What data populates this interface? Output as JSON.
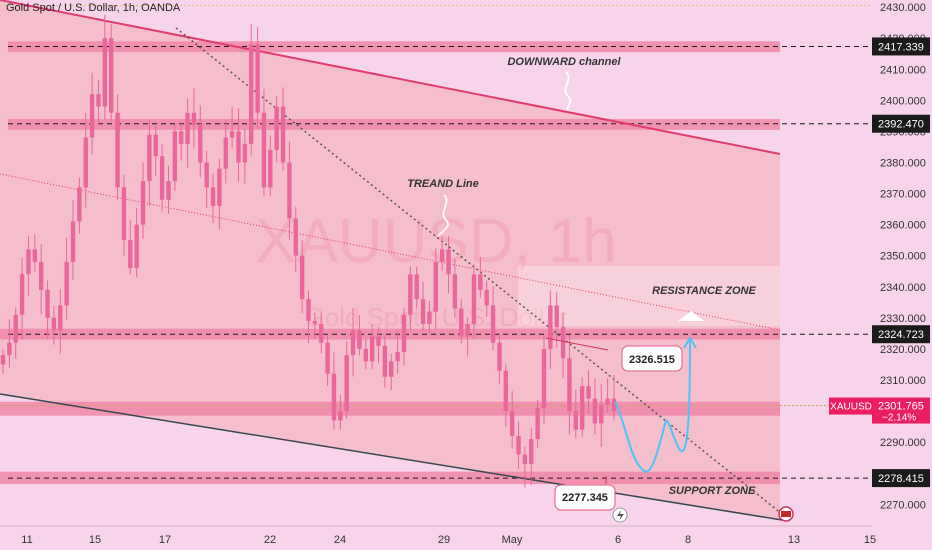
{
  "header": {
    "title": "Gold Spot / U.S. Dollar, 1h, OANDA"
  },
  "watermark": {
    "main": "XAUUSD, 1h",
    "sub": "Gold Spot / U.S. Dollar"
  },
  "colors": {
    "background": "#f8d4ec",
    "up_candle": "#e9679a",
    "down_candle": "#e9679a",
    "channel_top": "#e23b6e",
    "channel_bottom": "#37474f",
    "zone_fill": "#f2a3a8",
    "price_badge": "#e91e63",
    "projection": "#4fc3f7"
  },
  "chart_data": {
    "type": "candlestick",
    "symbol": "XAUUSD",
    "timeframe": "1h",
    "y_range": [
      2263,
      2431
    ],
    "y_ticks": [
      "2430.000",
      "2420.000",
      "2410.000",
      "2400.000",
      "2390.000",
      "2380.000",
      "2370.000",
      "2360.000",
      "2350.000",
      "2340.000",
      "2330.000",
      "2320.000",
      "2310.000",
      "2300.000",
      "2290.000",
      "2280.000",
      "2270.000"
    ],
    "x_ticks": [
      "11",
      "15",
      "17",
      "22",
      "24",
      "29",
      "May",
      "6",
      "8",
      "13",
      "15"
    ],
    "series": [
      {
        "close": [
          2318,
          2322,
          2331,
          2344,
          2352,
          2348,
          2339,
          2330,
          2326,
          2334,
          2348,
          2361,
          2372,
          2388,
          2402,
          2398,
          2420,
          2396,
          2372,
          2355,
          2346,
          2360,
          2374,
          2389,
          2382,
          2368,
          2374,
          2390,
          2386,
          2396,
          2392,
          2380,
          2372,
          2366,
          2378,
          2388,
          2390,
          2380,
          2386,
          2418,
          2396,
          2372,
          2384,
          2398,
          2380,
          2362,
          2350,
          2336,
          2329,
          2328,
          2322,
          2312,
          2297,
          2300,
          2318,
          2326,
          2320,
          2316,
          2324,
          2321,
          2311,
          2316,
          2319,
          2331,
          2344,
          2336,
          2328,
          2332,
          2348,
          2352,
          2344,
          2333,
          2324,
          2328,
          2344,
          2339,
          2334,
          2322,
          2313,
          2300,
          2292,
          2286,
          2283,
          2291,
          2301,
          2320,
          2334,
          2327,
          2317,
          2300,
          2294,
          2308,
          2304,
          2296,
          2302,
          2304,
          2300
        ]
      }
    ],
    "current_price": {
      "value": "2301.765",
      "change": "−2.14%",
      "label": "XAUUSD"
    },
    "price_labels": [
      "2417.339",
      "2392.470",
      "2324.723",
      "2278.415"
    ],
    "callouts": {
      "high": "2326.515",
      "low": "2277.345"
    },
    "annotations": {
      "channel": "DOWNWARD channel",
      "trend": "TREAND Line",
      "resistance": "RESISTANCE ZONE",
      "support": "SUPPORT ZONE"
    }
  }
}
